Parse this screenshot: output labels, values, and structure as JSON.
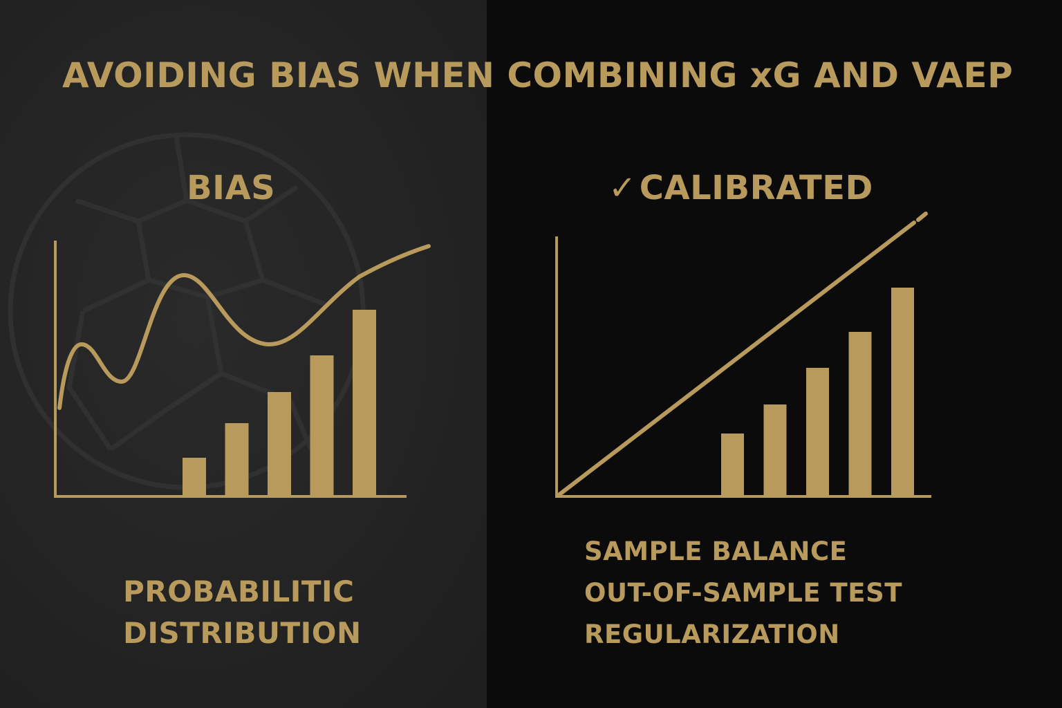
{
  "title": "AVOIDING BIAS WHEN COMBINING xG AND VAEP",
  "colors": {
    "accent": "#b89a5c",
    "left_panel": "#262626",
    "right_panel": "#0b0b0b"
  },
  "left": {
    "heading": "BIAS",
    "caption_lines": [
      "PROBABILITIC",
      "DISTRIBUTION"
    ],
    "background_icon": "soccer-ball-icon"
  },
  "right": {
    "heading_icon": "check-icon",
    "heading_check": "✓",
    "heading": "CALIBRATED",
    "caption_lines": [
      "SAMPLE BALANCE",
      "OUT-OF-SAMPLE TEST",
      "REGULARIZATION"
    ]
  },
  "chart_data": [
    {
      "type": "bar",
      "title": "",
      "values": [
        56,
        106,
        151,
        204,
        270
      ],
      "ylim": [
        0,
        370
      ],
      "overlay": "wavy-curve",
      "grid": false
    },
    {
      "type": "bar",
      "title": "",
      "values": [
        91,
        133,
        186,
        238,
        302
      ],
      "ylim": [
        0,
        375
      ],
      "overlay": "straight-diagonal-line",
      "grid": false
    }
  ]
}
